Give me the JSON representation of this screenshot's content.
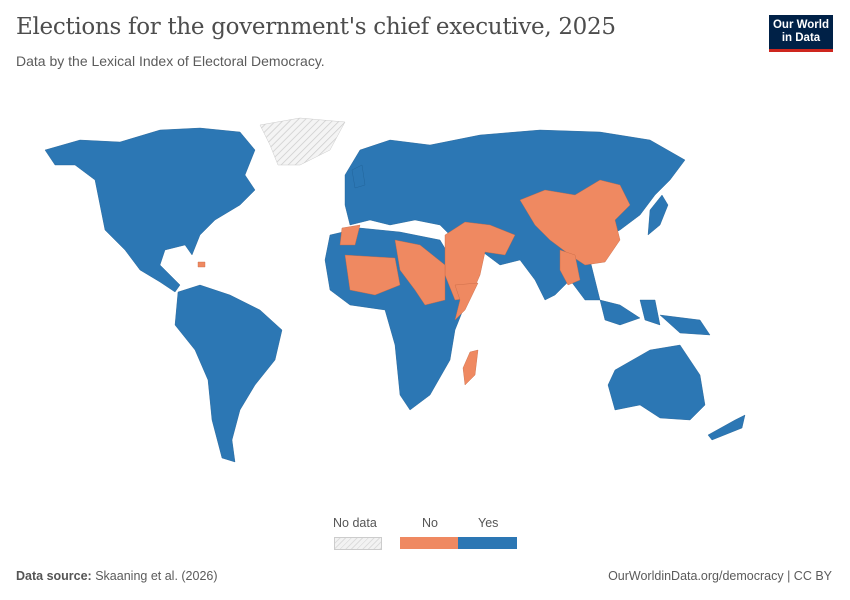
{
  "header": {
    "title": "Elections for the government's chief executive, 2025",
    "subtitle": "Data by the Lexical Index of Electoral Democracy.",
    "logo": "Our World in Data"
  },
  "map": {
    "colors": {
      "yes": "#2c77b4",
      "no": "#ef8961",
      "no_data": "#e5e5e5"
    }
  },
  "legend": {
    "no_data": "No data",
    "no": "No",
    "yes": "Yes"
  },
  "footer": {
    "source_label": "Data source:",
    "source": "Skaaning et al. (2026)",
    "link": "OurWorldinData.org/democracy | CC BY"
  }
}
